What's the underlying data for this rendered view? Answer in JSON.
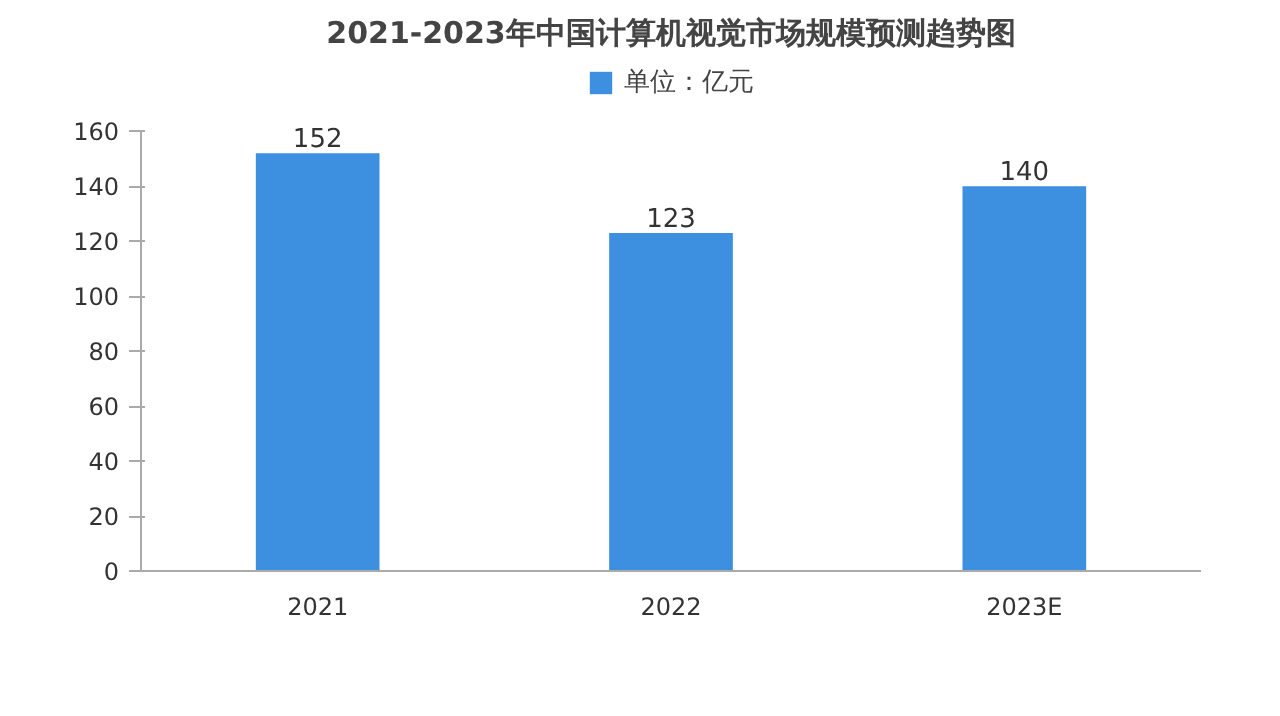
{
  "chart_data": {
    "type": "bar",
    "title": "2021-2023年中国计算机视觉市场规模预测趋势图",
    "categories": [
      "2021",
      "2022",
      "2023E"
    ],
    "series": [
      {
        "name": "单位：亿元",
        "color": "#3d8fe0",
        "values": [
          152,
          123,
          140
        ]
      }
    ],
    "ylim": [
      0,
      160
    ],
    "yticks": [
      0,
      20,
      40,
      60,
      80,
      100,
      120,
      140,
      160
    ],
    "grid": false,
    "legend": "top",
    "data_labels": true
  }
}
